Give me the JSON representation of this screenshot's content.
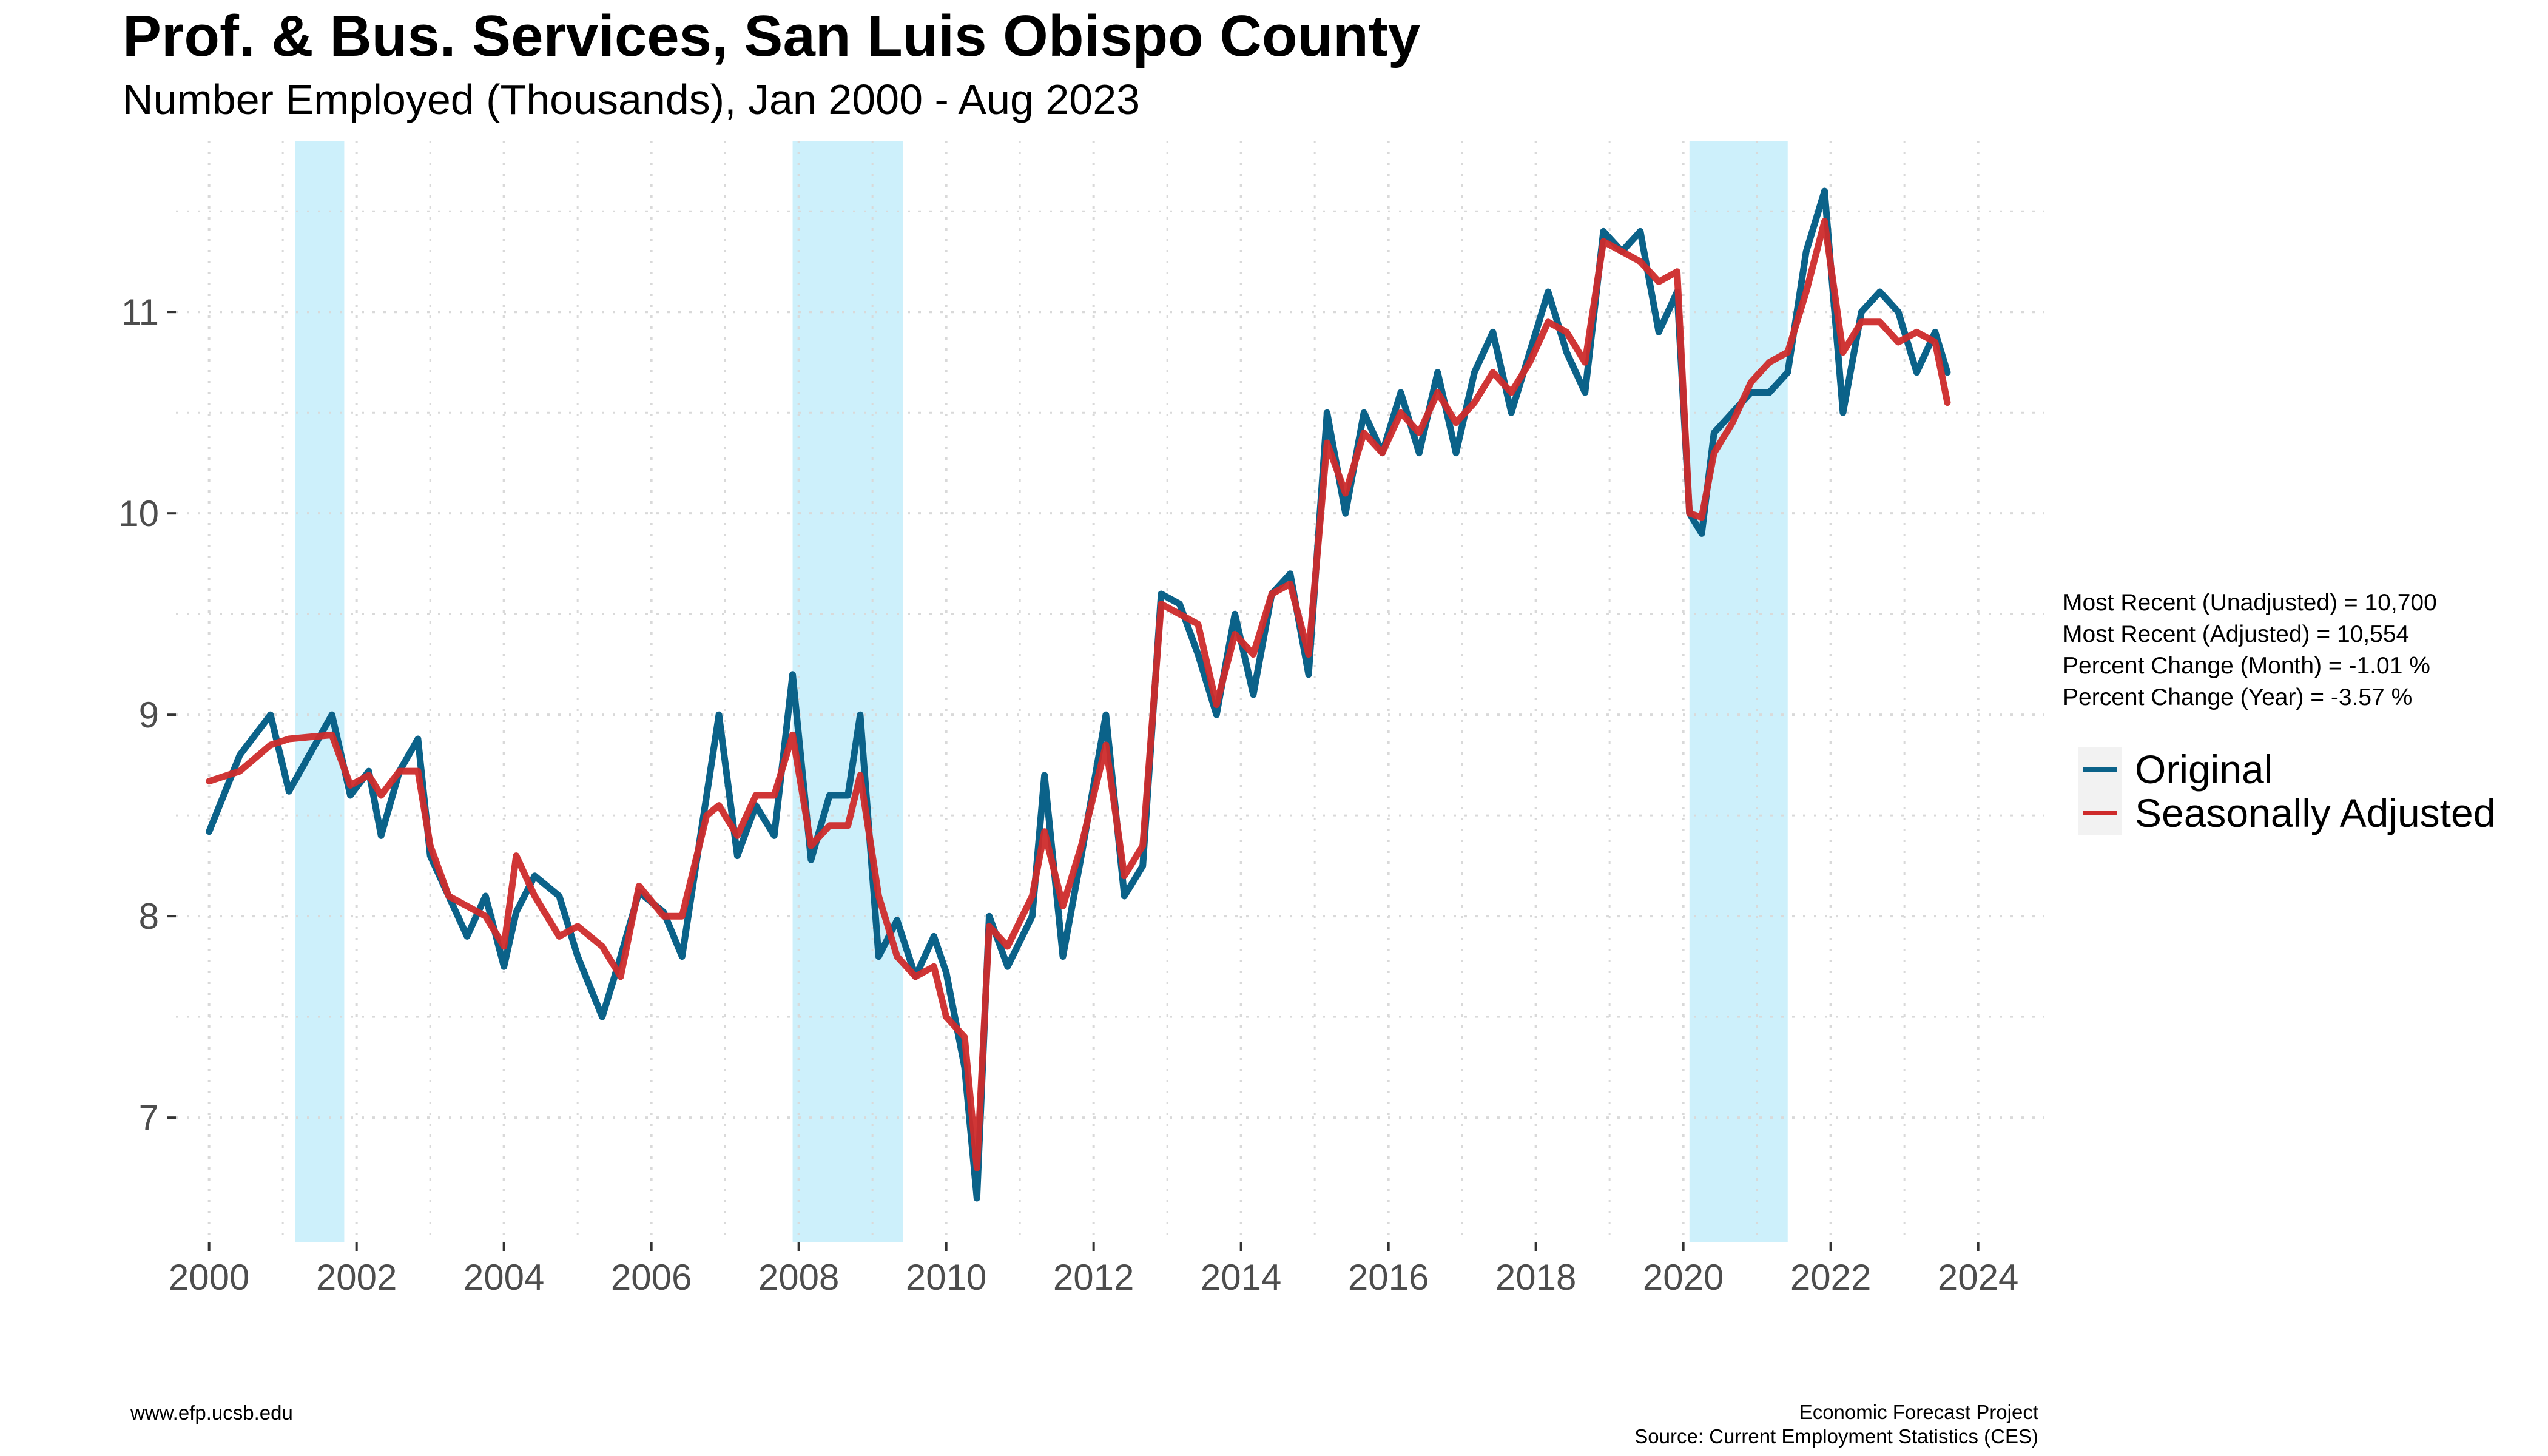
{
  "chart_data": {
    "type": "line",
    "title": "Prof. & Bus. Services, San Luis Obispo County",
    "subtitle": "Number Employed (Thousands), Jan 2000 - Aug 2023",
    "xlabel": "",
    "ylabel": "",
    "x_ticks": [
      "2000",
      "2002",
      "2004",
      "2006",
      "2008",
      "2010",
      "2012",
      "2014",
      "2016",
      "2018",
      "2020",
      "2022",
      "2024"
    ],
    "y_ticks": [
      "7",
      "8",
      "9",
      "10",
      "11"
    ],
    "xlim": [
      1999.55,
      2024.9
    ],
    "ylim": [
      6.38,
      11.85
    ],
    "grid": true,
    "legend_position": "right",
    "recession_shading": [
      {
        "start": "2001-03",
        "end": "2001-11"
      },
      {
        "start": "2007-12",
        "end": "2009-06"
      },
      {
        "start": "2020-02",
        "end": "2021-06"
      }
    ],
    "series": [
      {
        "name": "Original",
        "color": "#0b6289",
        "points": [
          [
            "2000-01",
            8.42
          ],
          [
            "2000-06",
            8.8
          ],
          [
            "2000-11",
            9.0
          ],
          [
            "2001-02",
            8.62
          ],
          [
            "2001-09",
            9.0
          ],
          [
            "2001-12",
            8.6
          ],
          [
            "2002-03",
            8.72
          ],
          [
            "2002-05",
            8.4
          ],
          [
            "2002-08",
            8.72
          ],
          [
            "2002-11",
            8.88
          ],
          [
            "2003-01",
            8.3
          ],
          [
            "2003-04",
            8.1
          ],
          [
            "2003-07",
            7.9
          ],
          [
            "2003-10",
            8.1
          ],
          [
            "2004-01",
            7.75
          ],
          [
            "2004-03",
            8.02
          ],
          [
            "2004-06",
            8.2
          ],
          [
            "2004-10",
            8.1
          ],
          [
            "2005-01",
            7.8
          ],
          [
            "2005-05",
            7.5
          ],
          [
            "2005-08",
            7.8
          ],
          [
            "2005-11",
            8.12
          ],
          [
            "2006-03",
            8.02
          ],
          [
            "2006-06",
            7.8
          ],
          [
            "2006-10",
            8.6
          ],
          [
            "2006-12",
            9.0
          ],
          [
            "2007-03",
            8.3
          ],
          [
            "2007-06",
            8.55
          ],
          [
            "2007-09",
            8.4
          ],
          [
            "2007-12",
            9.2
          ],
          [
            "2008-03",
            8.28
          ],
          [
            "2008-06",
            8.6
          ],
          [
            "2008-09",
            8.6
          ],
          [
            "2008-11",
            9.0
          ],
          [
            "2009-02",
            7.8
          ],
          [
            "2009-05",
            7.98
          ],
          [
            "2009-08",
            7.7
          ],
          [
            "2009-11",
            7.9
          ],
          [
            "2010-01",
            7.72
          ],
          [
            "2010-04",
            7.25
          ],
          [
            "2010-06",
            6.6
          ],
          [
            "2010-08",
            8.0
          ],
          [
            "2010-11",
            7.75
          ],
          [
            "2011-03",
            8.0
          ],
          [
            "2011-05",
            8.7
          ],
          [
            "2011-08",
            7.8
          ],
          [
            "2011-11",
            8.3
          ],
          [
            "2012-03",
            9.0
          ],
          [
            "2012-06",
            8.1
          ],
          [
            "2012-09",
            8.25
          ],
          [
            "2012-12",
            9.6
          ],
          [
            "2013-03",
            9.55
          ],
          [
            "2013-06",
            9.3
          ],
          [
            "2013-09",
            9.0
          ],
          [
            "2013-12",
            9.5
          ],
          [
            "2014-03",
            9.1
          ],
          [
            "2014-06",
            9.6
          ],
          [
            "2014-09",
            9.7
          ],
          [
            "2014-12",
            9.2
          ],
          [
            "2015-03",
            10.5
          ],
          [
            "2015-06",
            10.0
          ],
          [
            "2015-09",
            10.5
          ],
          [
            "2015-12",
            10.3
          ],
          [
            "2016-03",
            10.6
          ],
          [
            "2016-06",
            10.3
          ],
          [
            "2016-09",
            10.7
          ],
          [
            "2016-12",
            10.3
          ],
          [
            "2017-03",
            10.7
          ],
          [
            "2017-06",
            10.9
          ],
          [
            "2017-09",
            10.5
          ],
          [
            "2017-12",
            10.8
          ],
          [
            "2018-03",
            11.1
          ],
          [
            "2018-06",
            10.8
          ],
          [
            "2018-09",
            10.6
          ],
          [
            "2018-12",
            11.4
          ],
          [
            "2019-03",
            11.3
          ],
          [
            "2019-06",
            11.4
          ],
          [
            "2019-09",
            10.9
          ],
          [
            "2019-12",
            11.1
          ],
          [
            "2020-02",
            10.0
          ],
          [
            "2020-04",
            9.9
          ],
          [
            "2020-06",
            10.4
          ],
          [
            "2020-09",
            10.5
          ],
          [
            "2020-12",
            10.6
          ],
          [
            "2021-03",
            10.6
          ],
          [
            "2021-06",
            10.7
          ],
          [
            "2021-09",
            11.3
          ],
          [
            "2021-12",
            11.6
          ],
          [
            "2022-03",
            10.5
          ],
          [
            "2022-06",
            11.0
          ],
          [
            "2022-09",
            11.1
          ],
          [
            "2022-12",
            11.0
          ],
          [
            "2023-03",
            10.7
          ],
          [
            "2023-06",
            10.9
          ],
          [
            "2023-08",
            10.7
          ]
        ]
      },
      {
        "name": "Seasonally Adjusted",
        "color": "#ce2b2b",
        "points": [
          [
            "2000-01",
            8.67
          ],
          [
            "2000-06",
            8.72
          ],
          [
            "2000-11",
            8.85
          ],
          [
            "2001-02",
            8.88
          ],
          [
            "2001-09",
            8.9
          ],
          [
            "2001-12",
            8.65
          ],
          [
            "2002-03",
            8.7
          ],
          [
            "2002-05",
            8.6
          ],
          [
            "2002-08",
            8.72
          ],
          [
            "2002-11",
            8.72
          ],
          [
            "2003-01",
            8.35
          ],
          [
            "2003-04",
            8.1
          ],
          [
            "2003-07",
            8.05
          ],
          [
            "2003-10",
            8.0
          ],
          [
            "2004-01",
            7.85
          ],
          [
            "2004-03",
            8.3
          ],
          [
            "2004-06",
            8.1
          ],
          [
            "2004-10",
            7.9
          ],
          [
            "2005-01",
            7.95
          ],
          [
            "2005-05",
            7.85
          ],
          [
            "2005-08",
            7.7
          ],
          [
            "2005-11",
            8.15
          ],
          [
            "2006-03",
            8.0
          ],
          [
            "2006-06",
            8.0
          ],
          [
            "2006-10",
            8.5
          ],
          [
            "2006-12",
            8.55
          ],
          [
            "2007-03",
            8.4
          ],
          [
            "2007-06",
            8.6
          ],
          [
            "2007-09",
            8.6
          ],
          [
            "2007-12",
            8.9
          ],
          [
            "2008-03",
            8.35
          ],
          [
            "2008-06",
            8.45
          ],
          [
            "2008-09",
            8.45
          ],
          [
            "2008-11",
            8.7
          ],
          [
            "2009-02",
            8.1
          ],
          [
            "2009-05",
            7.8
          ],
          [
            "2009-08",
            7.7
          ],
          [
            "2009-11",
            7.75
          ],
          [
            "2010-01",
            7.5
          ],
          [
            "2010-04",
            7.4
          ],
          [
            "2010-06",
            6.75
          ],
          [
            "2010-08",
            7.95
          ],
          [
            "2010-11",
            7.85
          ],
          [
            "2011-03",
            8.1
          ],
          [
            "2011-05",
            8.42
          ],
          [
            "2011-08",
            8.05
          ],
          [
            "2011-11",
            8.35
          ],
          [
            "2012-03",
            8.85
          ],
          [
            "2012-06",
            8.2
          ],
          [
            "2012-09",
            8.35
          ],
          [
            "2012-12",
            9.55
          ],
          [
            "2013-03",
            9.5
          ],
          [
            "2013-06",
            9.45
          ],
          [
            "2013-09",
            9.05
          ],
          [
            "2013-12",
            9.4
          ],
          [
            "2014-03",
            9.3
          ],
          [
            "2014-06",
            9.6
          ],
          [
            "2014-09",
            9.65
          ],
          [
            "2014-12",
            9.3
          ],
          [
            "2015-03",
            10.35
          ],
          [
            "2015-06",
            10.1
          ],
          [
            "2015-09",
            10.4
          ],
          [
            "2015-12",
            10.3
          ],
          [
            "2016-03",
            10.5
          ],
          [
            "2016-06",
            10.4
          ],
          [
            "2016-09",
            10.6
          ],
          [
            "2016-12",
            10.45
          ],
          [
            "2017-03",
            10.55
          ],
          [
            "2017-06",
            10.7
          ],
          [
            "2017-09",
            10.6
          ],
          [
            "2017-12",
            10.75
          ],
          [
            "2018-03",
            10.95
          ],
          [
            "2018-06",
            10.9
          ],
          [
            "2018-09",
            10.75
          ],
          [
            "2018-12",
            11.35
          ],
          [
            "2019-03",
            11.3
          ],
          [
            "2019-06",
            11.25
          ],
          [
            "2019-09",
            11.15
          ],
          [
            "2019-12",
            11.2
          ],
          [
            "2020-02",
            10.0
          ],
          [
            "2020-04",
            9.98
          ],
          [
            "2020-06",
            10.3
          ],
          [
            "2020-09",
            10.45
          ],
          [
            "2020-12",
            10.65
          ],
          [
            "2021-03",
            10.75
          ],
          [
            "2021-06",
            10.8
          ],
          [
            "2021-09",
            11.1
          ],
          [
            "2021-12",
            11.45
          ],
          [
            "2022-03",
            10.8
          ],
          [
            "2022-06",
            10.95
          ],
          [
            "2022-09",
            10.95
          ],
          [
            "2022-12",
            10.85
          ],
          [
            "2023-03",
            10.9
          ],
          [
            "2023-06",
            10.85
          ],
          [
            "2023-08",
            10.55
          ]
        ]
      }
    ]
  },
  "stats": {
    "line1": "Most Recent (Unadjusted) = 10,700",
    "line2": "Most Recent (Adjusted) = 10,554",
    "line3": "Percent Change (Month) = -1.01 %",
    "line4": "Percent Change (Year) = -3.57 %"
  },
  "footer": {
    "left": "www.efp.ucsb.edu",
    "right_line1": "Economic Forecast Project",
    "right_line2": "Source: Current Employment Statistics (CES)"
  },
  "colors": {
    "recession": "#cdf0fb",
    "grid": "#d9d9d9",
    "legend_key_background": "#f2f2f2"
  }
}
